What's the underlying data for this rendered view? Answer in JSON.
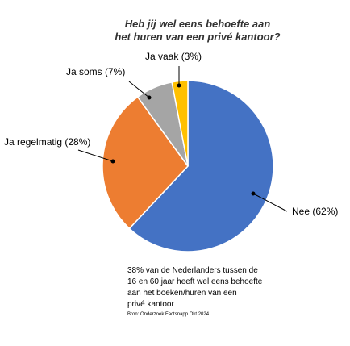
{
  "chart_data": {
    "type": "pie",
    "title": [
      "Heb jij wel eens behoefte aan",
      "het huren van een privé kantoor?"
    ],
    "categories": [
      "Nee (62%)",
      "Ja regelmatig (28%)",
      "Ja soms (7%)",
      "Ja vaak (3%)"
    ],
    "values": [
      62,
      28,
      7,
      3
    ],
    "colors": [
      "#4472c4",
      "#ed7d31",
      "#a5a5a5",
      "#ffc000"
    ],
    "note": [
      "38% van de Nederlanders tussen de",
      "16 en 60 jaar heeft wel eens behoefte",
      "aan het boeken/huren van een",
      "privé kantoor"
    ],
    "source": "Bron: Onderzoek Factsnapp Okt 2024"
  }
}
